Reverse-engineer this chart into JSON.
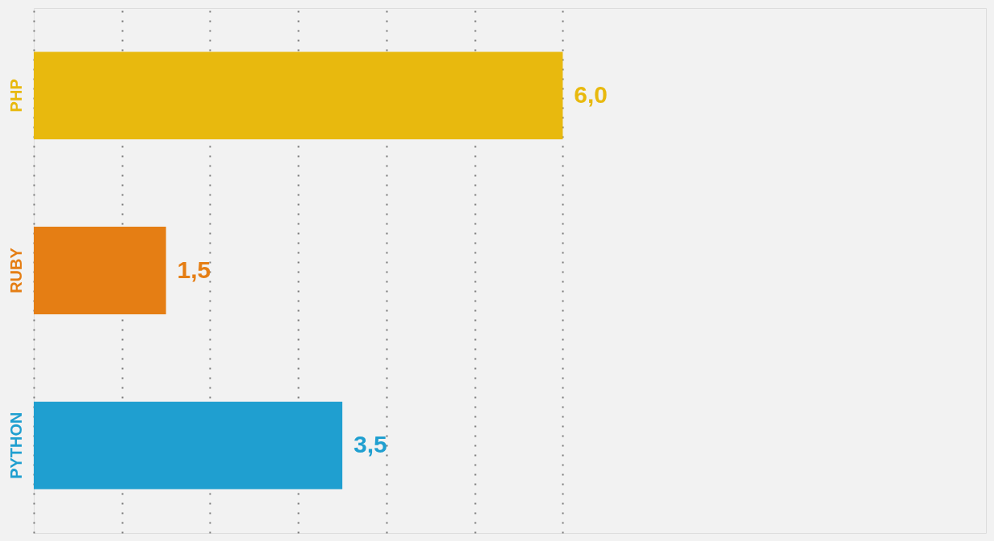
{
  "chart_data": {
    "type": "bar",
    "orientation": "horizontal",
    "categories": [
      "PHP",
      "RUBY",
      "PYTHON"
    ],
    "values": [
      6.0,
      1.5,
      3.5
    ],
    "colors": [
      "#e8b90e",
      "#e57e14",
      "#1f9fd0"
    ],
    "value_labels": [
      "6,0",
      "1,5",
      "3,5"
    ],
    "xlim": [
      0,
      10.8
    ],
    "xticks": [
      {
        "value": 0,
        "label": null
      },
      {
        "value": 1,
        "label": null
      },
      {
        "value": 2,
        "label": null
      },
      {
        "value": 3,
        "label": null
      },
      {
        "value": 4,
        "label": null
      },
      {
        "value": 5,
        "label": null
      },
      {
        "value": 6,
        "label": null
      }
    ],
    "grid": "x",
    "tick_labels": "y"
  }
}
